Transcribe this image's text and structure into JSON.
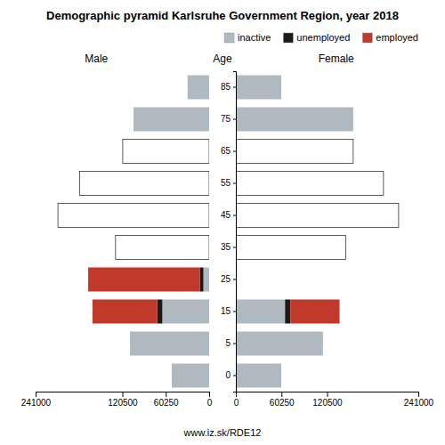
{
  "chart_data": [
    {
      "type": "bar",
      "orientation": "horizontal",
      "stacked": true,
      "title": "Demographic pyramid Karlsruhe Government Region, year 2018",
      "subtitle": "Male",
      "annotations": [
        "Age",
        "www.iz.sk/RDE12"
      ],
      "categories": [
        "0",
        "5",
        "15",
        "25",
        "35",
        "45",
        "55",
        "65",
        "75",
        "85"
      ],
      "series": [
        {
          "name": "inactive",
          "color": "#b0b8c0",
          "colors": [
            "#b0b8c0",
            "#b0b8c0",
            "#b0b8c0",
            "#b0b8c0",
            "#ffffff",
            "#ffffff",
            "#ffffff",
            "#ffffff",
            "#b0b8c0",
            "#b0b8c0"
          ],
          "values": [
            52000,
            110000,
            65000,
            8000,
            130000,
            210000,
            180000,
            120000,
            105000,
            30000
          ]
        },
        {
          "name": "unemployed",
          "color": "#1a1a1a",
          "values": [
            0,
            0,
            7000,
            5000,
            0,
            0,
            0,
            0,
            0,
            0
          ]
        },
        {
          "name": "employed",
          "color": "#c0392b",
          "values": [
            0,
            0,
            90000,
            155000,
            0,
            0,
            0,
            0,
            0,
            0
          ]
        }
      ],
      "xlim": [
        241000,
        0
      ],
      "xticks": [
        0,
        60250,
        120500,
        241000
      ],
      "tick_labels": "x",
      "grid": false
    },
    {
      "type": "bar",
      "orientation": "horizontal",
      "stacked": true,
      "subtitle": "Female",
      "categories": [
        "0",
        "5",
        "15",
        "25",
        "35",
        "45",
        "55",
        "65",
        "75",
        "85"
      ],
      "series": [
        {
          "name": "inactive",
          "color": "#b0b8c0",
          "colors": [
            "#b0b8c0",
            "#b0b8c0",
            "#b0b8c0",
            "#b0b8c0",
            "#ffffff",
            "#ffffff",
            "#ffffff",
            "#ffffff",
            "#b0b8c0",
            "#b0b8c0"
          ],
          "values": [
            60000,
            115000,
            65000,
            0,
            145000,
            215000,
            195000,
            155000,
            155000,
            60000
          ]
        },
        {
          "name": "unemployed",
          "color": "#1a1a1a",
          "values": [
            0,
            0,
            7000,
            0,
            0,
            0,
            0,
            0,
            0,
            0
          ]
        },
        {
          "name": "employed",
          "color": "#c0392b",
          "values": [
            0,
            0,
            65000,
            0,
            0,
            0,
            0,
            0,
            0,
            0
          ]
        }
      ],
      "xlim": [
        0,
        241000
      ],
      "xticks": [
        0,
        60250,
        120500,
        241000
      ],
      "legend": "upper right",
      "grid": false
    }
  ]
}
